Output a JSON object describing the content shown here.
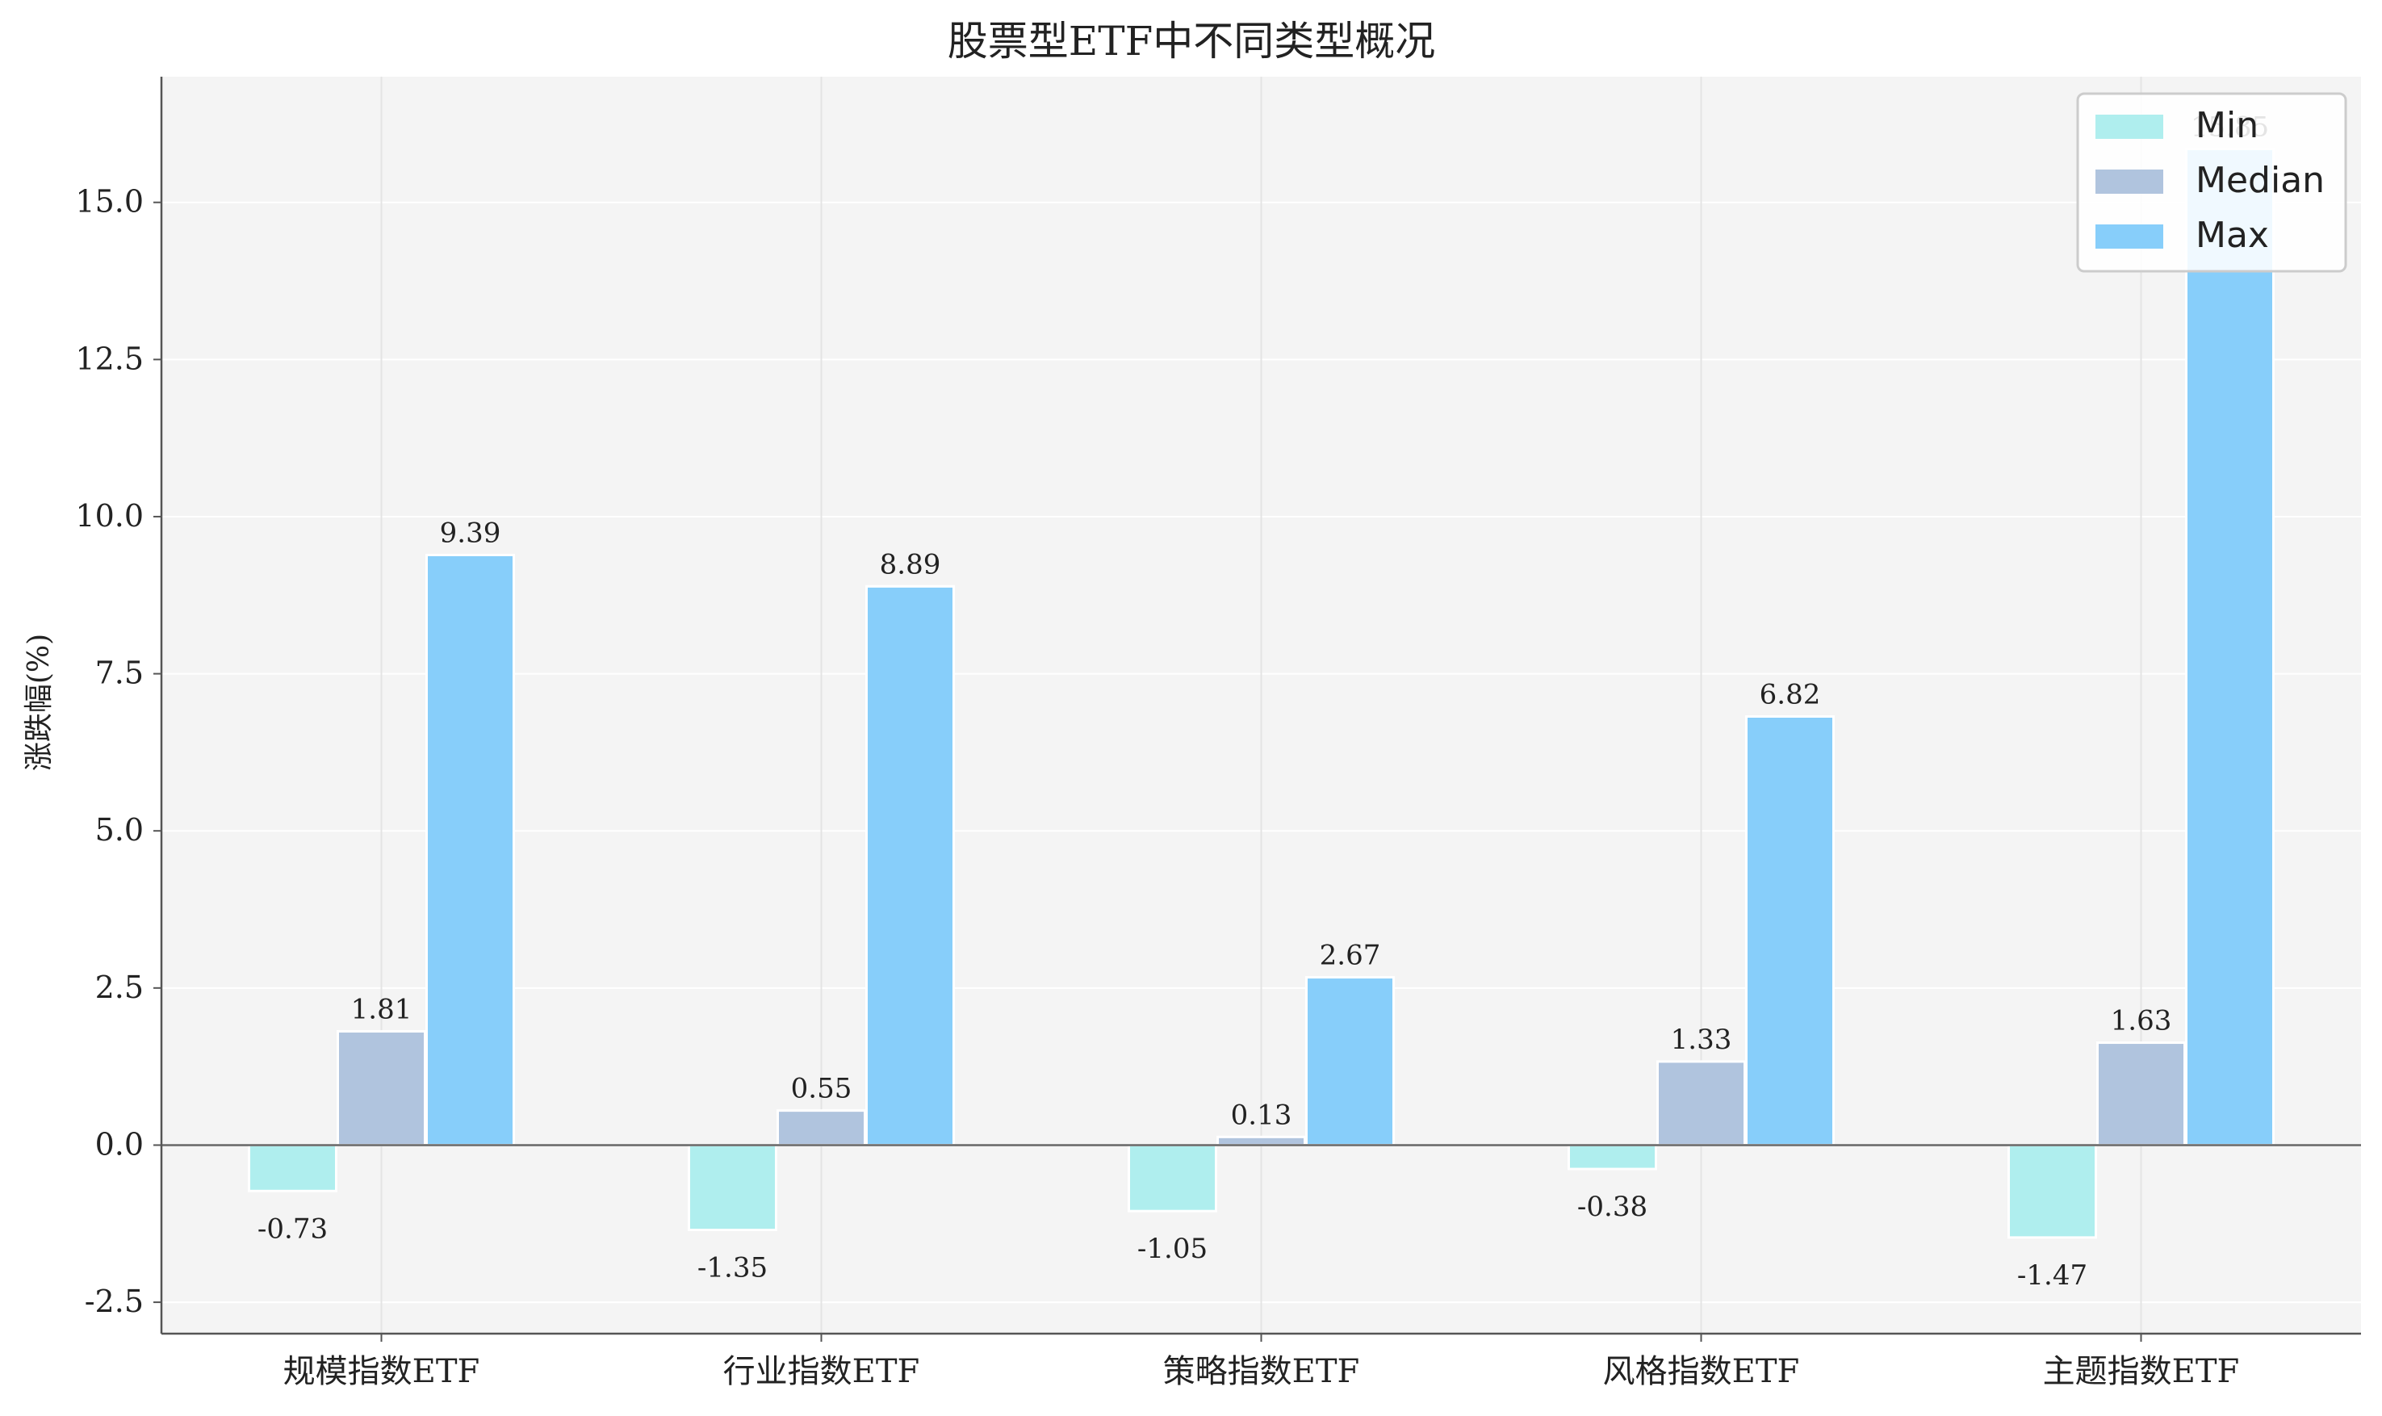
{
  "chart_data": {
    "type": "bar",
    "title": "股票型ETF中不同类型概况",
    "xlabel": "",
    "ylabel": "涨跌幅(%)",
    "categories": [
      "规模指数ETF",
      "行业指数ETF",
      "策略指数ETF",
      "风格指数ETF",
      "主题指数ETF"
    ],
    "series": [
      {
        "name": "Min",
        "values": [
          -0.73,
          -1.35,
          -1.05,
          -0.38,
          -1.47
        ],
        "labels": [
          "-0.73",
          "-1.35",
          "-1.05",
          "-0.38",
          "-1.47"
        ],
        "color": "#AFEEEE"
      },
      {
        "name": "Median",
        "values": [
          1.81,
          0.55,
          0.13,
          1.33,
          1.63
        ],
        "labels": [
          "1.81",
          "0.55",
          "0.13",
          "1.33",
          "1.63"
        ],
        "color": "#B0C4DE"
      },
      {
        "name": "Max",
        "values": [
          9.39,
          8.89,
          2.67,
          6.82,
          15.85
        ],
        "labels": [
          "9.39",
          "8.89",
          "2.67",
          "6.82",
          "15.85"
        ],
        "color": "#87CEFA"
      }
    ],
    "ylim": [
      -3.0,
      17.0
    ],
    "yticks": [
      -2.5,
      0.0,
      2.5,
      5.0,
      7.5,
      10.0,
      12.5,
      15.0
    ],
    "ytick_labels": [
      "-2.5",
      "0.0",
      "2.5",
      "5.0",
      "7.5",
      "10.0",
      "12.5",
      "15.0"
    ],
    "grid": true,
    "legend_position": "top-right",
    "colors": {
      "background": "#F4F4F4",
      "grid": "#FFFFFF",
      "axis": "#555555",
      "zero_line": "#666666"
    }
  }
}
